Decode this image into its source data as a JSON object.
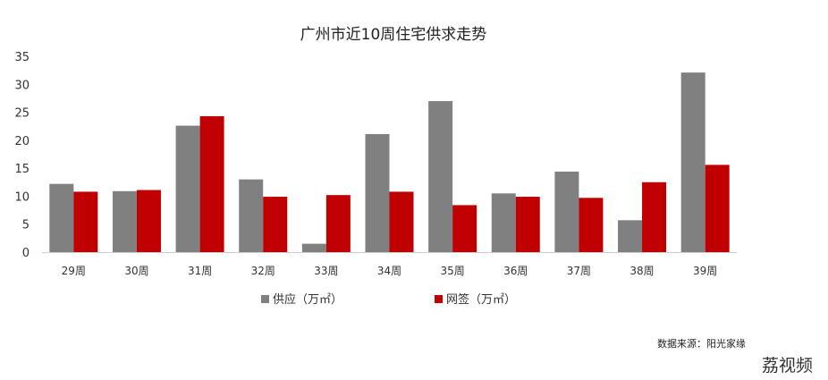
{
  "chart_data": {
    "type": "bar",
    "title": "广州市近10周住宅供求走势",
    "categories": [
      "29周",
      "30周",
      "31周",
      "32周",
      "33周",
      "34周",
      "35周",
      "36周",
      "37周",
      "38周",
      "39周"
    ],
    "series": [
      {
        "name": "供应（万㎡）",
        "color": "#808080",
        "values": [
          12.2,
          10.9,
          22.6,
          13.0,
          1.5,
          21.1,
          27.0,
          10.5,
          14.4,
          5.7,
          32.1
        ]
      },
      {
        "name": "网签（万㎡）",
        "color": "#c00000",
        "values": [
          10.8,
          11.1,
          24.3,
          9.9,
          10.2,
          10.8,
          8.4,
          9.9,
          9.7,
          12.5,
          15.6
        ]
      }
    ],
    "ylim": [
      0,
      35
    ],
    "yticks": [
      0,
      5,
      10,
      15,
      20,
      25,
      30,
      35
    ],
    "grid": false,
    "legend": "bottom",
    "xlabel": "",
    "ylabel": ""
  },
  "source": "数据来源：阳光家缘",
  "watermark": "荔视频"
}
